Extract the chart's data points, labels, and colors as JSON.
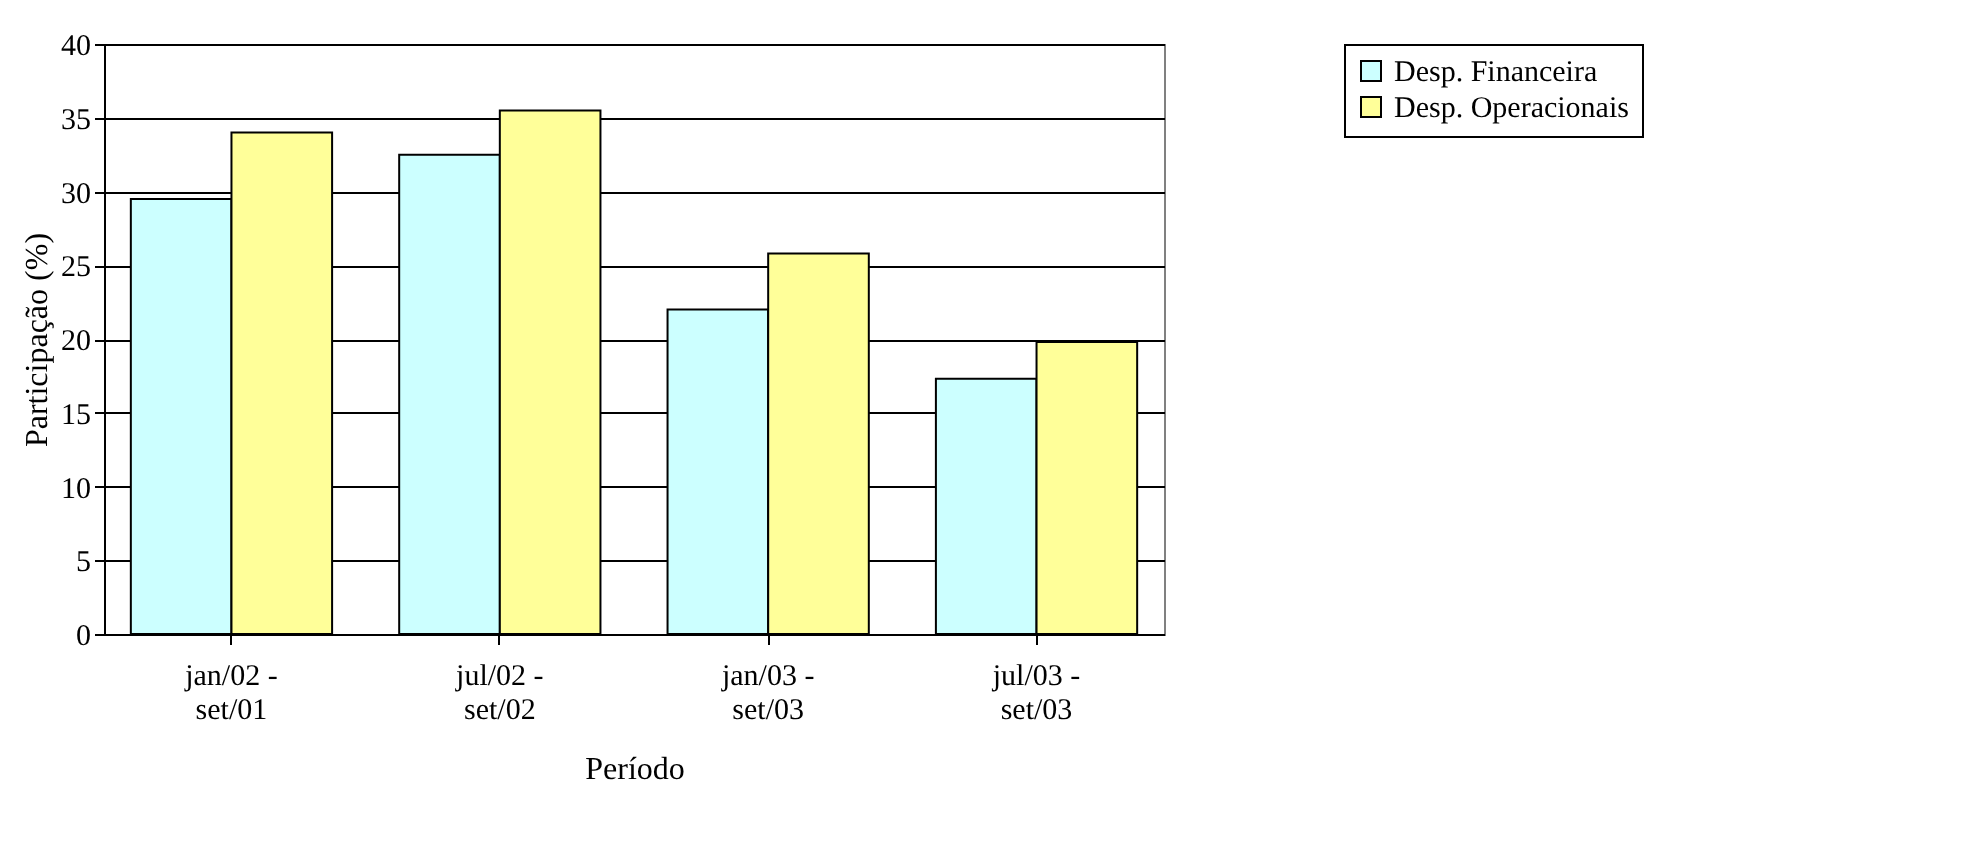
{
  "chart_data": {
    "type": "bar",
    "xlabel": "Período",
    "ylabel": "Participação (%)",
    "categories": [
      "jan/02 - set/01",
      "jul/02 - set/02",
      "jan/03 - set/03",
      "jul/03 - set/03"
    ],
    "series": [
      {
        "name": "Desp. Financeira",
        "color": "#ccffff",
        "values": [
          29.5,
          32.5,
          22,
          17.3
        ]
      },
      {
        "name": "Desp. Operacionais",
        "color": "#ffff99",
        "values": [
          34,
          35.5,
          25.8,
          19.8
        ]
      }
    ],
    "ylim": [
      0,
      40
    ],
    "yticks": [
      0,
      5,
      10,
      15,
      20,
      25,
      30,
      35,
      40
    ],
    "grid": "y",
    "legend": "right"
  }
}
